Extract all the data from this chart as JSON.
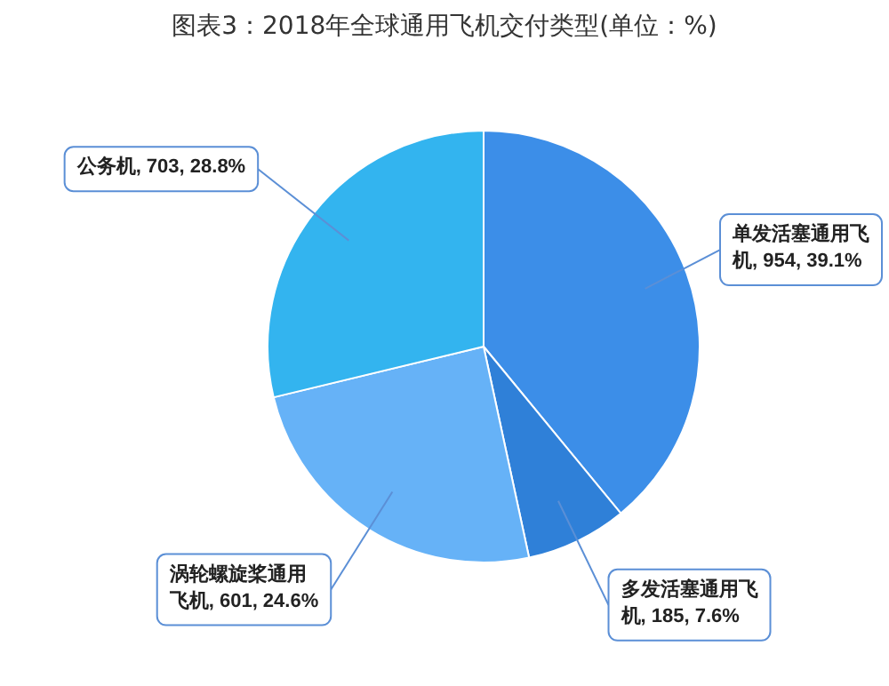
{
  "chart_data": {
    "type": "pie",
    "title": "图表3：2018年全球通用飞机交付类型(单位：%)",
    "categories": [
      "单发活塞通用飞机",
      "多发活塞通用飞机",
      "涡轮螺旋桨通用飞机",
      "公务机"
    ],
    "values": [
      954,
      185,
      601,
      703
    ],
    "value_labels": [
      "954, 39.1%",
      "185, 7.6%",
      "601, 24.6%",
      "703, 28.8%"
    ],
    "colors": [
      "#3c8ee8",
      "#2f80d8",
      "#66b2f7",
      "#33b4ef"
    ],
    "legend": false
  }
}
